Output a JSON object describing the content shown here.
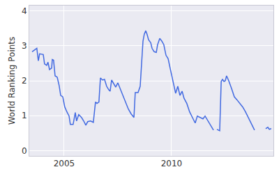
{
  "chart_data": {
    "type": "line",
    "y_label": "World Ranking Points",
    "x": [
      2003.51,
      2003.64,
      2003.73,
      2003.8,
      2003.86,
      2004.03,
      2004.09,
      2004.19,
      2004.25,
      2004.32,
      2004.42,
      2004.45,
      2004.51,
      2004.58,
      2004.68,
      2004.77,
      2004.84,
      2004.94,
      2005.03,
      2005.13,
      2005.23,
      2005.29,
      2005.42,
      2005.52,
      2005.58,
      2005.68,
      2005.81,
      2005.91,
      2006.01,
      2006.1,
      2006.23,
      2006.36,
      2006.46,
      2006.53,
      2006.62,
      2006.69,
      2006.79,
      2006.88,
      2006.98,
      2007.08,
      2007.14,
      2007.21,
      2007.31,
      2007.4,
      2007.5,
      2007.6,
      2007.73,
      2007.86,
      2007.99,
      2008.12,
      2008.25,
      2008.31,
      2008.44,
      2008.54,
      2008.6,
      2008.67,
      2008.73,
      2008.8,
      2008.86,
      2008.93,
      2009.03,
      2009.09,
      2009.19,
      2009.29,
      2009.35,
      2009.45,
      2009.55,
      2009.64,
      2009.74,
      2009.84,
      2009.94,
      2010.06,
      2010.19,
      2010.29,
      2010.39,
      2010.49,
      2010.58,
      2010.71,
      2010.84,
      2010.97,
      2011.1,
      2011.2,
      2011.33,
      2011.46,
      2011.56,
      2011.69,
      2011.82,
      2011.95,
      2012.03,
      2012.11,
      2012.24,
      2012.31,
      2012.37,
      2012.44,
      2012.5,
      2012.56,
      2012.66,
      2012.79,
      2012.92,
      2013.05,
      2013.18,
      2013.31,
      2013.44,
      2013.57,
      2013.7,
      2013.86,
      2014.1,
      2014.38,
      2014.48,
      2014.55,
      2014.64
    ],
    "values": [
      2.83,
      2.89,
      2.93,
      2.57,
      2.77,
      2.75,
      2.48,
      2.44,
      2.53,
      2.32,
      2.36,
      2.61,
      2.59,
      2.14,
      2.1,
      1.86,
      1.58,
      1.54,
      1.25,
      1.11,
      0.99,
      0.75,
      0.75,
      1.09,
      0.85,
      1.03,
      0.95,
      0.85,
      0.73,
      0.83,
      0.85,
      0.81,
      1.39,
      1.35,
      1.39,
      2.08,
      2.02,
      2.04,
      1.84,
      1.74,
      1.7,
      2.02,
      1.92,
      1.82,
      1.94,
      1.78,
      1.58,
      1.39,
      1.19,
      1.05,
      0.95,
      1.66,
      1.66,
      1.84,
      2.53,
      3.13,
      3.33,
      3.43,
      3.33,
      3.17,
      3.09,
      2.93,
      2.83,
      2.81,
      3.03,
      3.21,
      3.13,
      3.03,
      2.73,
      2.63,
      2.34,
      2.0,
      1.64,
      1.84,
      1.58,
      1.7,
      1.5,
      1.35,
      1.11,
      0.95,
      0.79,
      0.99,
      0.95,
      0.91,
      0.99,
      0.85,
      0.71,
      0.59,
      null,
      0.61,
      0.57,
      1.98,
      2.04,
      1.98,
      2.0,
      2.14,
      2.0,
      1.78,
      1.54,
      1.45,
      1.35,
      1.25,
      1.11,
      0.95,
      0.79,
      0.59,
      null,
      0.63,
      0.67,
      0.61,
      0.63
    ],
    "color": "#4169e1",
    "line_style": "solid",
    "grid": true,
    "xlim": [
      2003.38,
      2014.74
    ],
    "xticks": [
      2005,
      2010
    ],
    "ylim": [
      -0.15,
      4.15
    ],
    "yticks": [
      0,
      1,
      2,
      3,
      4
    ]
  }
}
